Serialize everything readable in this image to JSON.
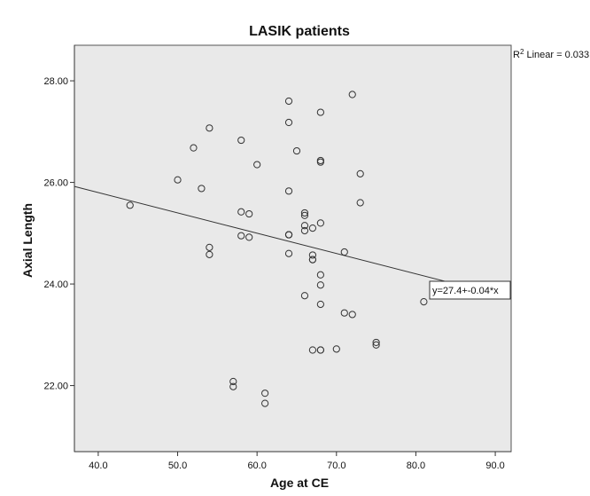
{
  "chart_data": {
    "type": "scatter",
    "title": "LASIK patients",
    "xlabel": "Age at CE",
    "ylabel": "Axial Length",
    "xlim": [
      37,
      92
    ],
    "ylim": [
      20.7,
      28.7
    ],
    "x_ticks": [
      "40.0",
      "50.0",
      "60.0",
      "70.0",
      "80.0",
      "90.0"
    ],
    "x_tick_values": [
      40,
      50,
      60,
      70,
      80,
      90
    ],
    "y_ticks": [
      "28.00",
      "26.00",
      "24.00",
      "22.00"
    ],
    "y_tick_values": [
      28,
      26,
      24,
      22
    ],
    "grid": false,
    "background_color": "#e9e9e9",
    "series": [
      {
        "x": [
          44,
          50,
          52,
          53,
          54,
          54,
          54,
          57,
          57,
          58,
          58,
          58,
          59,
          59,
          60,
          61,
          61,
          64,
          64,
          64,
          64,
          64,
          64,
          64,
          65,
          66,
          66,
          66,
          66,
          66,
          67,
          67,
          67,
          67,
          67,
          68,
          68,
          68,
          68,
          68,
          68,
          68,
          68,
          68,
          70,
          71,
          71,
          72,
          72,
          73,
          73,
          75,
          75,
          81
        ],
        "y": [
          25.55,
          26.05,
          26.68,
          25.88,
          27.07,
          24.72,
          24.58,
          22.08,
          21.98,
          26.83,
          25.42,
          24.95,
          25.38,
          24.92,
          26.35,
          21.85,
          21.65,
          27.6,
          27.18,
          25.83,
          24.97,
          24.97,
          24.97,
          24.6,
          26.62,
          25.4,
          25.35,
          25.15,
          25.05,
          23.77,
          25.1,
          24.57,
          24.48,
          24.48,
          22.7,
          27.38,
          26.43,
          26.4,
          25.2,
          24.18,
          23.98,
          23.6,
          22.7,
          22.7,
          22.72,
          24.63,
          23.43,
          27.73,
          23.4,
          26.17,
          25.6,
          22.85,
          22.8,
          23.65
        ]
      }
    ],
    "fit_line": {
      "label": "y=27.4+-0.04*x",
      "intercept": 27.4,
      "slope": -0.04,
      "x_range": [
        37,
        92
      ],
      "r_squared_label_prefix": "R",
      "r_squared_label_superscript": "2",
      "r_squared_label_suffix": " Linear = 0.033"
    }
  }
}
